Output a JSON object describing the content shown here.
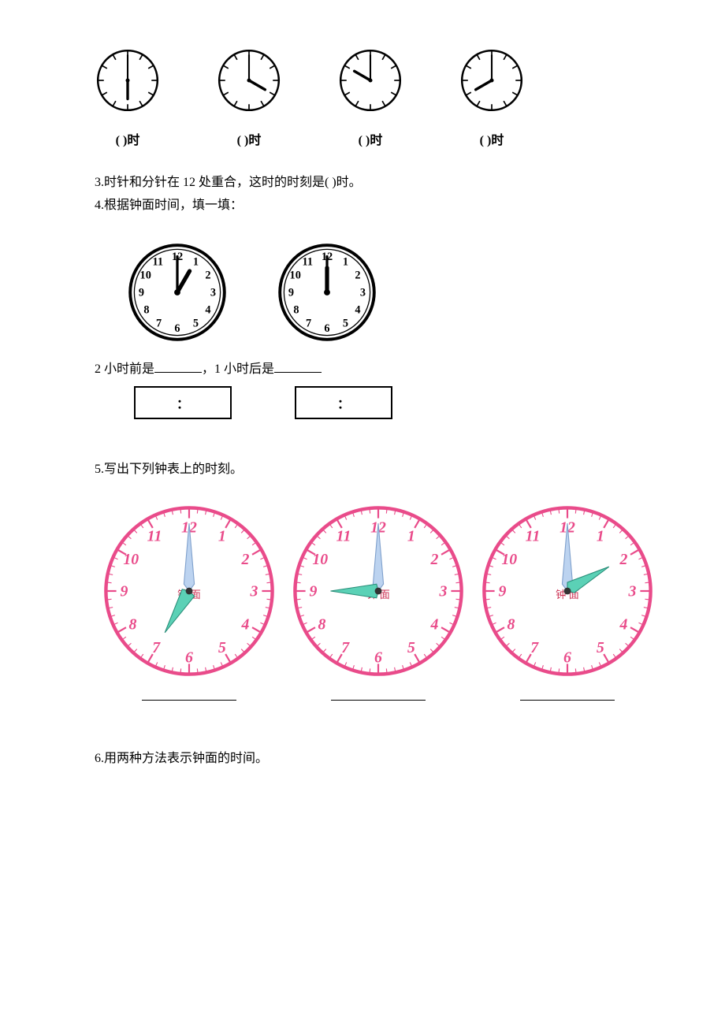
{
  "topClocks": {
    "label": "(    )时",
    "clocks": [
      {
        "hourAngle": 180,
        "minuteAngle": 0
      },
      {
        "hourAngle": 120,
        "minuteAngle": 0
      },
      {
        "hourAngle": 300,
        "minuteAngle": 0
      },
      {
        "hourAngle": 240,
        "minuteAngle": 0
      }
    ],
    "size": 84,
    "strokeColor": "#000000"
  },
  "q3": {
    "text": "3.时针和分针在 12 处重合，这时的时刻是(      )时。"
  },
  "q4": {
    "text": "4.根据钟面时间，填一填：",
    "labelLeft": "2 小时前是",
    "labelRight": "，1 小时后是",
    "clocks": [
      {
        "hourAngle": 30,
        "minuteAngle": 0
      },
      {
        "hourAngle": 0,
        "minuteAngle": 0
      }
    ],
    "size": 110,
    "showNumbers": true,
    "strokeColor": "#000000",
    "boxColon": "："
  },
  "q5": {
    "text": "5.写出下列钟表上的时刻。",
    "clocks": [
      {
        "hourAngle": 210,
        "minuteAngle": 0
      },
      {
        "hourAngle": 270,
        "minuteAngle": 0
      },
      {
        "hourAngle": 60,
        "minuteAngle": 0
      }
    ],
    "size": 220,
    "rimColor": "#e94b8a",
    "numberColor": "#e94b8a",
    "hourHandFill": "#5bd1b6",
    "hourHandStroke": "#2a8f7a",
    "minuteHandFill": "#bcd3f0",
    "minuteHandStroke": "#7fa0cc",
    "tickColor": "#e94b8a",
    "centerLabel": "钟  面",
    "centerLabelColor": "#cc3355"
  },
  "q6": {
    "text": "6.用两种方法表示钟面的时间。"
  }
}
